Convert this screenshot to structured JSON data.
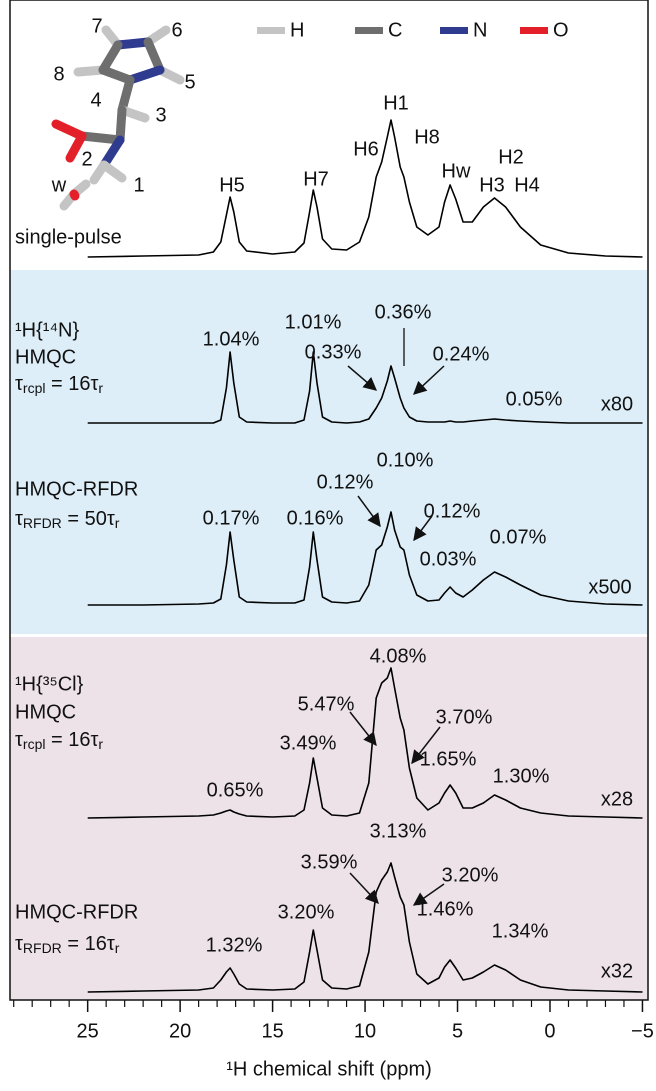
{
  "chart_data": {
    "type": "line",
    "xlabel": "¹H chemical shift (ppm)",
    "xlim": [
      29.2,
      -5.3
    ],
    "xticks": [
      25,
      20,
      15,
      10,
      5,
      0,
      {
        "value": -5,
        "label": "−5"
      }
    ],
    "xminorticks": [
      29,
      28,
      27,
      26,
      24,
      23,
      22,
      21,
      19,
      18,
      17,
      16,
      14,
      13,
      12,
      11,
      9,
      8,
      7,
      6,
      4,
      3,
      2,
      1,
      -1,
      -2,
      -3,
      -4
    ],
    "legend": [
      {
        "name": "H",
        "color": "#c4c4c4"
      },
      {
        "name": "C",
        "color": "#6e6e6e"
      },
      {
        "name": "N",
        "color": "#2e3b8f"
      },
      {
        "name": "O",
        "color": "#e3202a"
      }
    ],
    "atom_labels": [
      "7",
      "6",
      "8",
      "5",
      "4",
      "3",
      "2",
      "1",
      "w"
    ],
    "x": [
      25,
      22,
      19,
      18.2,
      17.8,
      17.5,
      17.3,
      17.1,
      16.8,
      16.4,
      15,
      13.8,
      13.3,
      13.0,
      12.8,
      12.6,
      12.3,
      11.8,
      11,
      10.3,
      9.8,
      9.4,
      9.1,
      8.8,
      8.6,
      8.4,
      8.1,
      7.9,
      7.6,
      7.2,
      6.6,
      6.0,
      5.7,
      5.4,
      5.1,
      4.7,
      4.2,
      3.6,
      3.0,
      2.4,
      1.6,
      0.5,
      -1,
      -3,
      -5
    ],
    "series": [
      {
        "name": "single-pulse",
        "color": "#000000",
        "background": "#ffffff",
        "annotations": [
          "H5",
          "H7",
          "H6",
          "H1",
          "H8",
          "Hw",
          "H2",
          "H3",
          "H4"
        ],
        "values": [
          0,
          1,
          2,
          5,
          15,
          42,
          60,
          45,
          15,
          6,
          3,
          5,
          14,
          45,
          67,
          50,
          18,
          8,
          7,
          15,
          40,
          80,
          95,
          120,
          137,
          120,
          90,
          80,
          55,
          30,
          22,
          30,
          55,
          72,
          58,
          35,
          35,
          50,
          59,
          50,
          30,
          12,
          4,
          1,
          0
        ]
      },
      {
        "name": "HMQC",
        "nucleus": "¹H{¹⁴N}",
        "param": [
          "τ",
          "rcpl",
          " = 16τ",
          "r"
        ],
        "scale": "x80",
        "color": "#000000",
        "background": "#ddeef8",
        "annotations": [
          "1.04%",
          "1.01%",
          "0.33%",
          "0.36%",
          "0.24%",
          "0.05%"
        ],
        "values": [
          0,
          0,
          0,
          0,
          3,
          35,
          71,
          40,
          6,
          1,
          0,
          0,
          3,
          32,
          71,
          40,
          6,
          1,
          0,
          1,
          4,
          15,
          25,
          42,
          57,
          45,
          25,
          15,
          6,
          2,
          1,
          1,
          1,
          2,
          1,
          1,
          2,
          3,
          4,
          3,
          2,
          1,
          0,
          0,
          0
        ]
      },
      {
        "name": "HMQC-RFDR",
        "param": [
          "τ",
          "RFDR",
          " = 50τ",
          "r"
        ],
        "scale": "x500",
        "color": "#000000",
        "background": "#ddeef8",
        "annotations": [
          "0.17%",
          "0.16%",
          "0.12%",
          "0.10%",
          "0.12%",
          "0.03%",
          "0.07%"
        ],
        "values": [
          0,
          0,
          1,
          2,
          6,
          40,
          73,
          45,
          8,
          3,
          2,
          2,
          5,
          38,
          73,
          45,
          8,
          3,
          2,
          4,
          20,
          55,
          60,
          78,
          93,
          75,
          58,
          55,
          30,
          10,
          4,
          5,
          12,
          18,
          12,
          8,
          15,
          25,
          33,
          28,
          20,
          10,
          4,
          1,
          0
        ]
      },
      {
        "name": "HMQC",
        "nucleus": "¹H{³⁵Cl}",
        "param": [
          "τ",
          "rcpl",
          " = 16τ",
          "r"
        ],
        "scale": "x28",
        "color": "#000000",
        "background": "#ede2e8",
        "annotations": [
          "0.65%",
          "3.49%",
          "5.47%",
          "4.08%",
          "3.70%",
          "1.65%",
          "1.30%"
        ],
        "values": [
          0,
          1,
          2,
          3,
          5,
          7,
          8,
          6,
          4,
          2,
          1,
          2,
          8,
          35,
          60,
          40,
          10,
          3,
          2,
          5,
          35,
          120,
          135,
          140,
          150,
          130,
          100,
          88,
          50,
          20,
          8,
          15,
          25,
          33,
          25,
          10,
          10,
          15,
          23,
          18,
          10,
          5,
          2,
          1,
          0
        ]
      },
      {
        "name": "HMQC-RFDR",
        "param": [
          "τ",
          "RFDR",
          " = 16τ",
          "r"
        ],
        "scale": "x32",
        "color": "#000000",
        "background": "#ede2e8",
        "annotations": [
          "1.32%",
          "3.20%",
          "3.59%",
          "3.13%",
          "3.20%",
          "1.46%",
          "1.34%"
        ],
        "values": [
          0,
          1,
          2,
          4,
          12,
          20,
          24,
          18,
          8,
          3,
          2,
          3,
          10,
          40,
          62,
          42,
          12,
          4,
          3,
          6,
          40,
          100,
          112,
          120,
          129,
          115,
          95,
          87,
          50,
          18,
          8,
          14,
          25,
          32,
          24,
          12,
          14,
          20,
          27,
          22,
          12,
          5,
          2,
          1,
          0
        ]
      }
    ]
  }
}
